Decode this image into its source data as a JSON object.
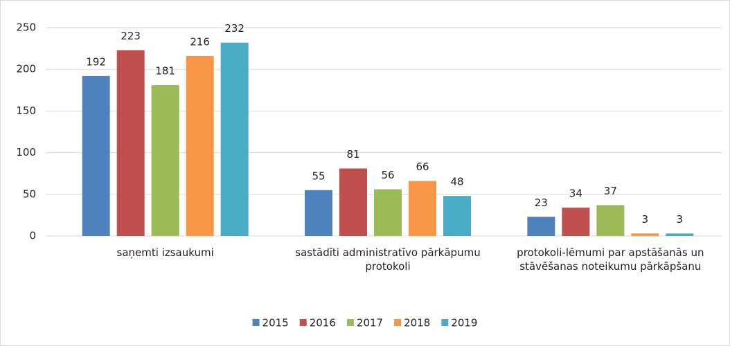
{
  "chart_data": {
    "type": "bar",
    "categories": [
      "saņemti izsaukumi",
      "sastādīti administratīvo pārkāpumu protokoli",
      "protokoli-lēmumi par apstāšanās un stāvēšanas noteikumu pārkāpšanu"
    ],
    "series": [
      {
        "name": "2015",
        "color": "#4f81bd",
        "values": [
          192,
          55,
          23
        ]
      },
      {
        "name": "2016",
        "color": "#c0504d",
        "values": [
          223,
          81,
          34
        ]
      },
      {
        "name": "2017",
        "color": "#9bbb59",
        "values": [
          181,
          56,
          37
        ]
      },
      {
        "name": "2018",
        "color": "#f79646",
        "values": [
          216,
          66,
          3
        ]
      },
      {
        "name": "2019",
        "color": "#4bacc6",
        "values": [
          232,
          48,
          3
        ]
      }
    ],
    "ylim": [
      0,
      250
    ],
    "yticks": [
      0,
      50,
      100,
      150,
      200,
      250
    ],
    "grid": true,
    "legend": "bottom"
  }
}
